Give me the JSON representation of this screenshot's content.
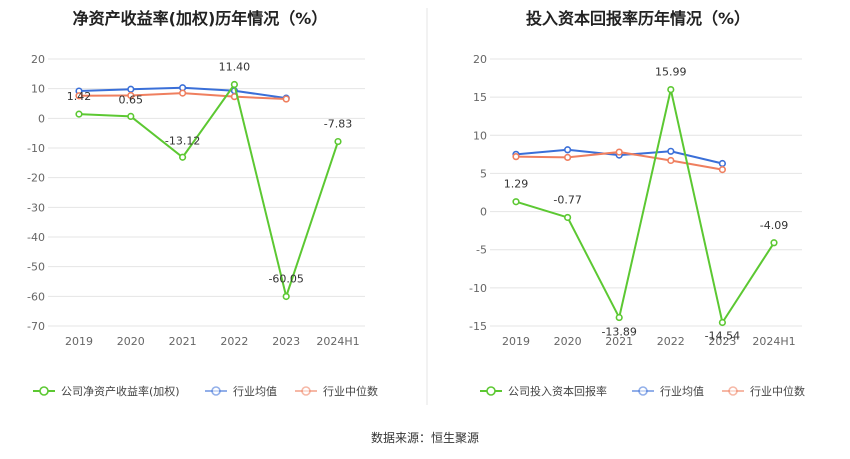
{
  "source_text": "数据来源：恒生聚源",
  "colors": {
    "company": "#5cc832",
    "avg": "#3a6fd8",
    "median": "#ef7f5f",
    "grid": "#e4e4e4",
    "divider": "#e6e6e6"
  },
  "chart_data": [
    {
      "type": "line",
      "title": "净资产收益率(加权)历年情况（%）",
      "categories": [
        "2019",
        "2020",
        "2021",
        "2022",
        "2023",
        "2024H1"
      ],
      "ylim": [
        -70,
        20
      ],
      "yticks": [
        20,
        10,
        0,
        -10,
        -20,
        -30,
        -40,
        -50,
        -60,
        -70
      ],
      "legend_position": "bottom",
      "series": [
        {
          "name": "公司净资产收益率(加权)",
          "role": "company",
          "values": [
            1.42,
            0.65,
            -13.12,
            11.4,
            -60.05,
            -7.83
          ],
          "labels": [
            "1.42",
            "0.65",
            "-13.12",
            "11.40",
            "-60.05",
            "-7.83"
          ]
        },
        {
          "name": "行业均值",
          "role": "avg",
          "values": [
            9.2,
            9.8,
            10.3,
            9.3,
            6.8,
            null
          ]
        },
        {
          "name": "行业中位数",
          "role": "median",
          "values": [
            7.6,
            7.7,
            8.5,
            7.3,
            6.5,
            null
          ]
        }
      ]
    },
    {
      "type": "line",
      "title": "投入资本回报率历年情况（%）",
      "categories": [
        "2019",
        "2020",
        "2021",
        "2022",
        "2023",
        "2024H1"
      ],
      "ylim": [
        -15,
        20
      ],
      "yticks": [
        20,
        15,
        10,
        5,
        0,
        -5,
        -10,
        -15
      ],
      "legend_position": "bottom",
      "series": [
        {
          "name": "公司投入资本回报率",
          "role": "company",
          "values": [
            1.29,
            -0.77,
            -13.89,
            15.99,
            -14.54,
            -4.09
          ],
          "labels": [
            "1.29",
            "-0.77",
            "-13.89",
            "15.99",
            "-14.54",
            "-4.09"
          ]
        },
        {
          "name": "行业均值",
          "role": "avg",
          "values": [
            7.5,
            8.1,
            7.4,
            7.9,
            6.3,
            null
          ]
        },
        {
          "name": "行业中位数",
          "role": "median",
          "values": [
            7.2,
            7.1,
            7.8,
            6.7,
            5.5,
            null
          ]
        }
      ]
    }
  ]
}
